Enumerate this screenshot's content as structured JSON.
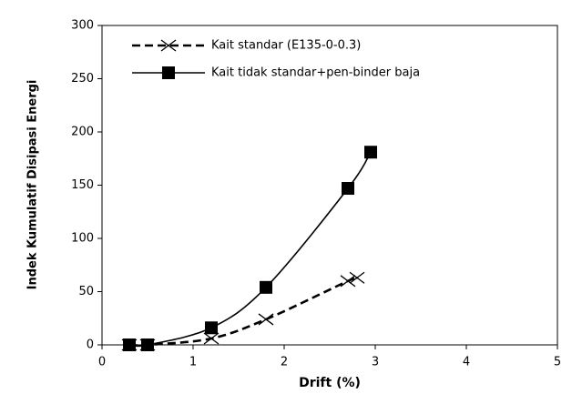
{
  "chart_data": {
    "type": "line",
    "x_label": "Drift (%)",
    "y_label": "Indek Kumulatif Disipasi Energi",
    "xlim": [
      0,
      5
    ],
    "xticks": [
      0,
      1,
      2,
      3,
      4,
      5
    ],
    "ylim": [
      0,
      300
    ],
    "yticks": [
      0,
      50,
      100,
      150,
      200,
      250,
      300
    ],
    "grid": false,
    "legend": "upper left",
    "series": [
      {
        "name": "Kait standar (E135-0-0.3)",
        "color": "#000000",
        "dash": "dashed",
        "marker": "x",
        "x": [
          0.3,
          0.5,
          1.2,
          1.8,
          2.7,
          2.8
        ],
        "values": [
          0,
          0,
          6,
          24,
          60,
          63
        ]
      },
      {
        "name": "Kait tidak standar+pen-binder baja",
        "color": "#000000",
        "dash": "solid",
        "marker": "square",
        "x": [
          0.3,
          0.5,
          1.2,
          1.8,
          2.7,
          2.95
        ],
        "values": [
          0,
          0,
          16,
          54,
          147,
          181
        ]
      }
    ]
  }
}
